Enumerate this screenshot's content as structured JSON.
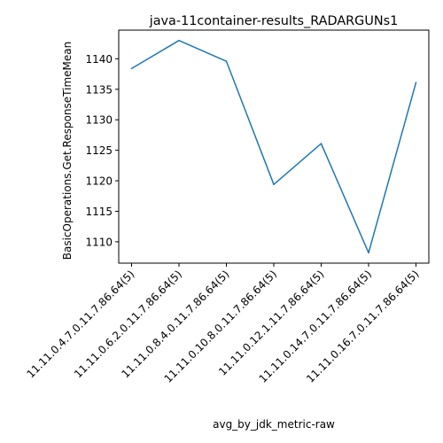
{
  "chart_data": {
    "type": "line",
    "title": "java-11container-results_RADARGUNs1",
    "xlabel": "avg_by_jdk_metric-raw",
    "ylabel": "BasicOperations.Get.ResponseTimeMean",
    "categories": [
      "11.11.0.4.7.0.11.7.86.64(5)",
      "11.11.0.6.2.0.11.7.86.64(5)",
      "11.11.0.8.4.0.11.7.86.64(5)",
      "11.11.0.10.8.0.11.7.86.64(5)",
      "11.11.0.12.1.11.7.86.64(5)",
      "11.11.0.14.7.0.11.7.86.64(5)",
      "11.11.0.16.7.0.11.7.86.64(5)"
    ],
    "series": [
      {
        "values": [
          1138.4,
          1143.0,
          1139.6,
          1119.4,
          1126.1,
          1108.2,
          1136.1
        ]
      }
    ],
    "yticks": [
      1110,
      1115,
      1120,
      1125,
      1130,
      1135,
      1140
    ],
    "ylim": [
      1106.5,
      1144.7
    ],
    "grid": false,
    "line_color": "#1f77b4"
  }
}
